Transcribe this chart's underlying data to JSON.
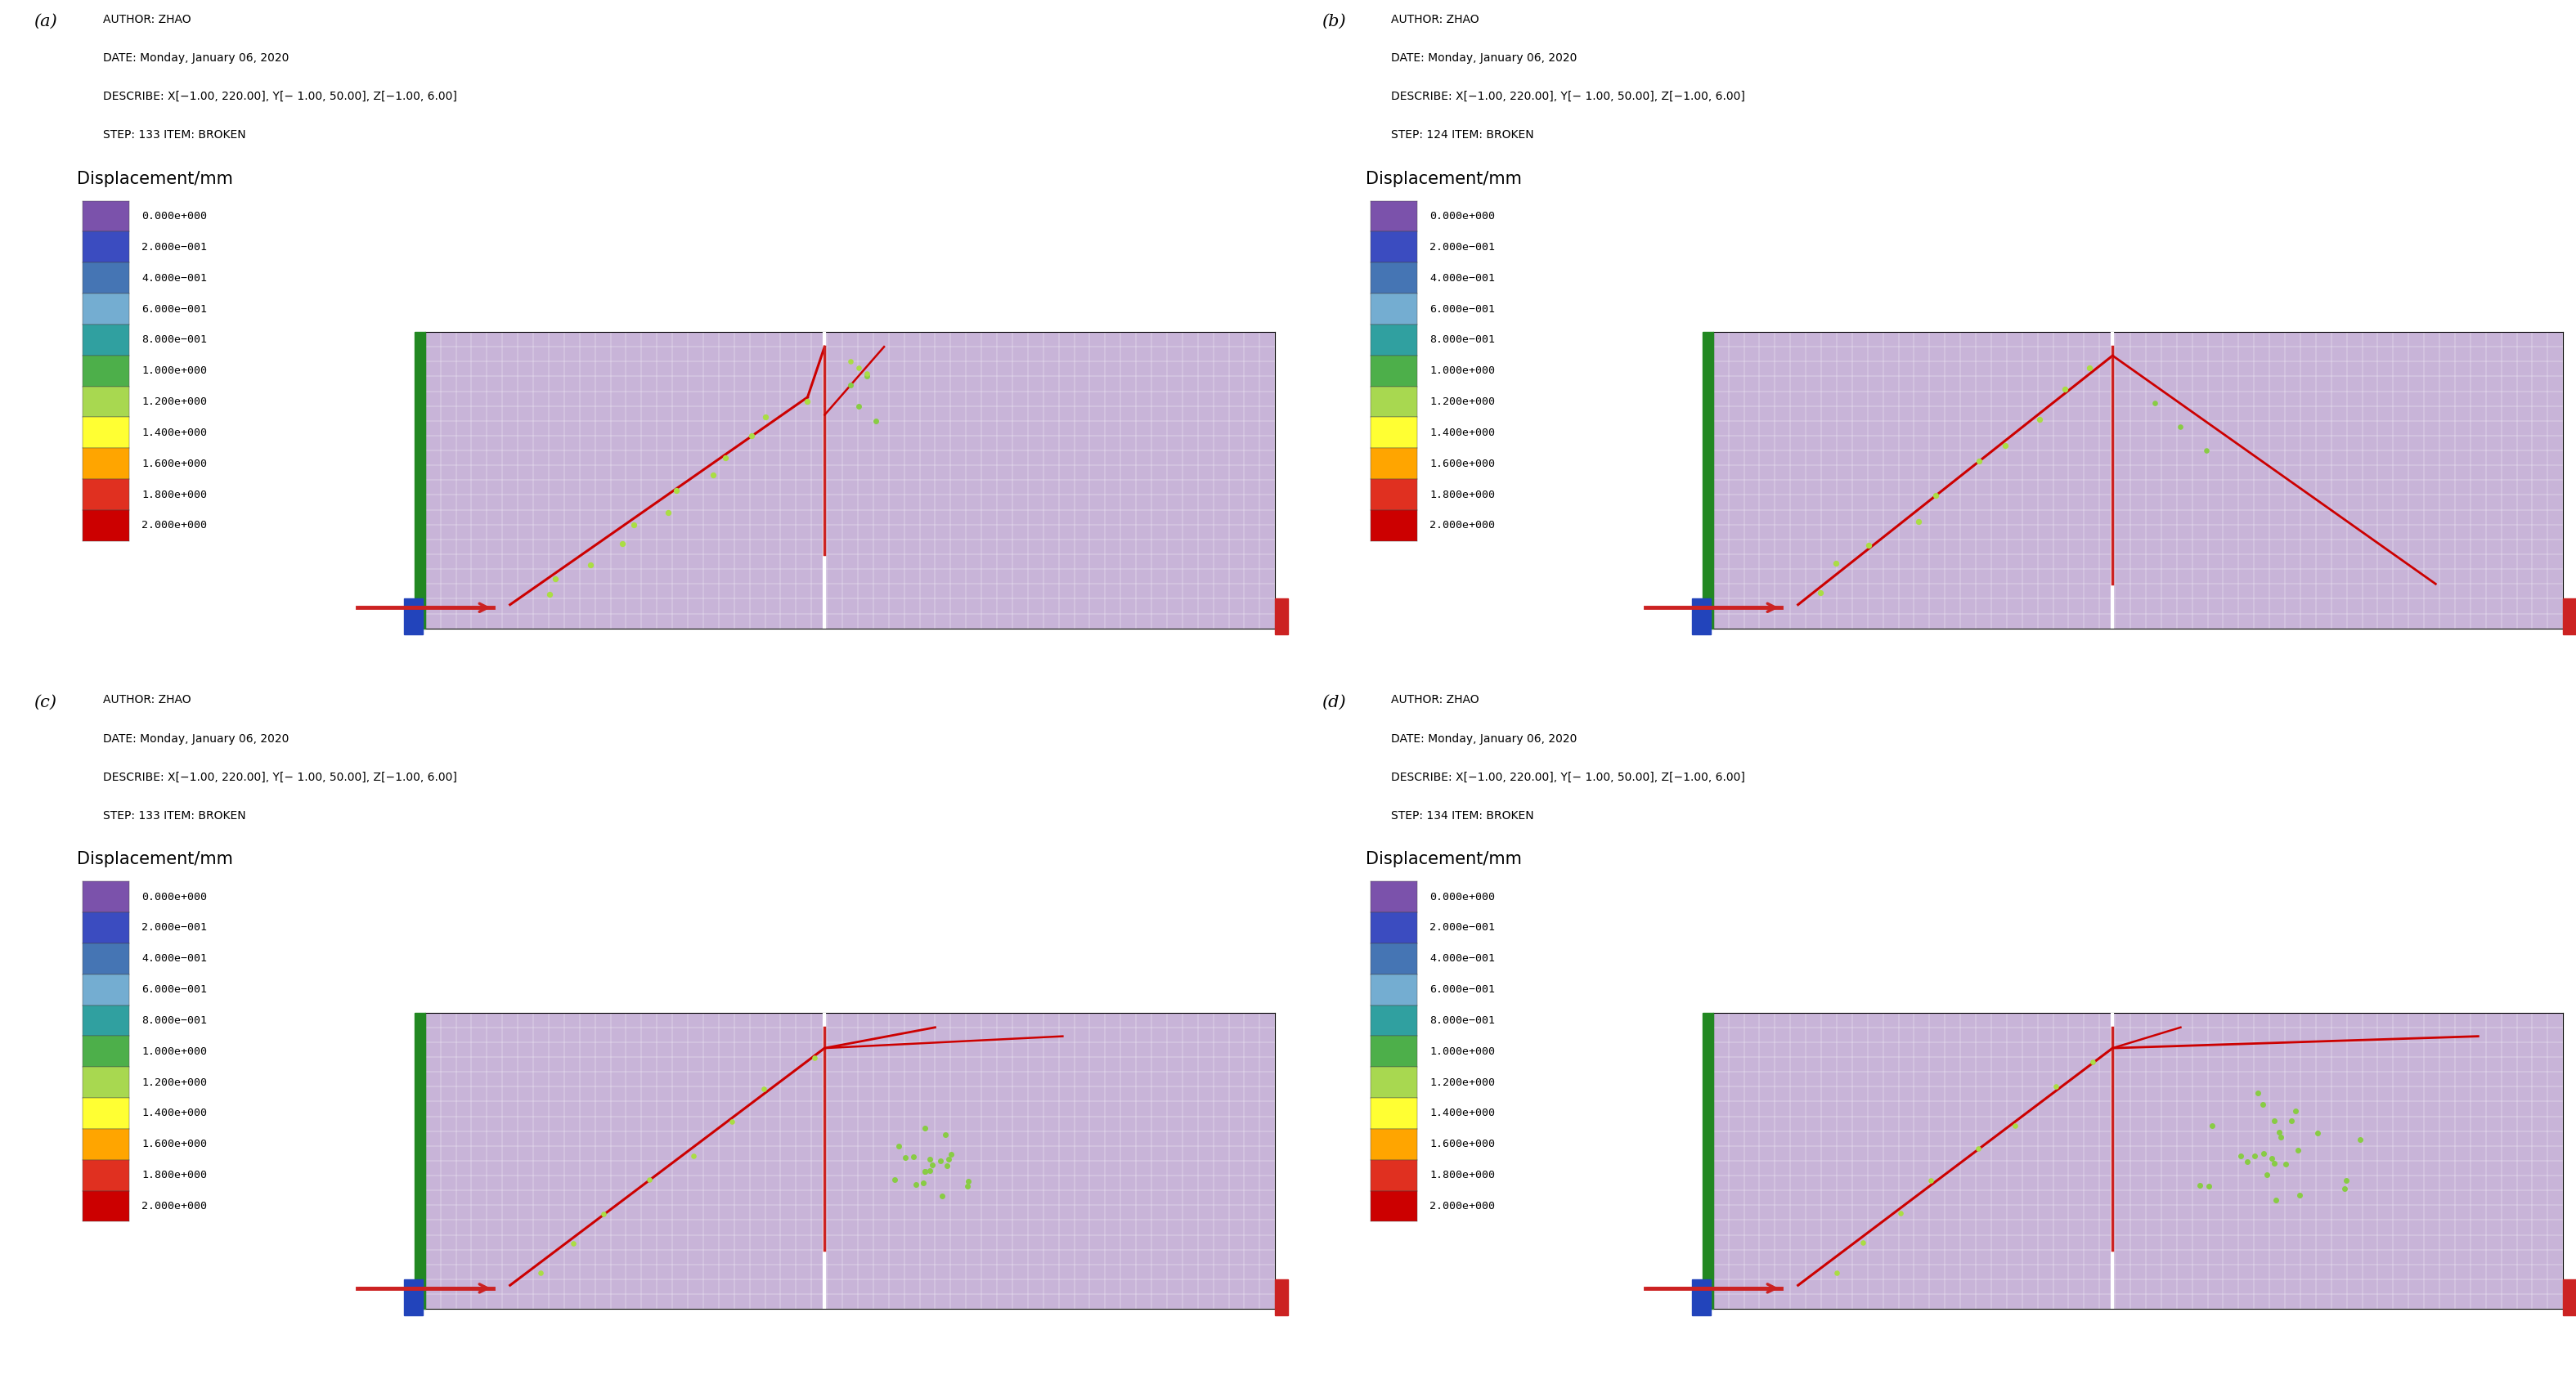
{
  "panels": [
    {
      "label": "(a)",
      "author": "AUTHOR: ZHAO",
      "date": "DATE: Monday, January 06, 2020",
      "describe": "DESCRIBE: X[−1.00, 220.00], Y[− 1.00, 50.00], Z[−1.00, 6.00]",
      "step": "STEP: 133 ITEM: BROKEN"
    },
    {
      "label": "(b)",
      "author": "AUTHOR: ZHAO",
      "date": "DATE: Monday, January 06, 2020",
      "describe": "DESCRIBE: X[−1.00, 220.00], Y[− 1.00, 50.00], Z[−1.00, 6.00]",
      "step": "STEP: 124 ITEM: BROKEN"
    },
    {
      "label": "(c)",
      "author": "AUTHOR: ZHAO",
      "date": "DATE: Monday, January 06, 2020",
      "describe": "DESCRIBE: X[−1.00, 220.00], Y[− 1.00, 50.00], Z[−1.00, 6.00]",
      "step": "STEP: 133 ITEM: BROKEN"
    },
    {
      "label": "(d)",
      "author": "AUTHOR: ZHAO",
      "date": "DATE: Monday, January 06, 2020",
      "describe": "DESCRIBE: X[−1.00, 220.00], Y[− 1.00, 50.00], Z[−1.00, 6.00]",
      "step": "STEP: 134 ITEM: BROKEN"
    }
  ],
  "colorbar_colors": [
    "#7B52AB",
    "#3B4CC0",
    "#4575B4",
    "#74ADD1",
    "#30A0A0",
    "#4DAF4A",
    "#A8D850",
    "#FFFF33",
    "#FFA500",
    "#E03020",
    "#CC0000"
  ],
  "colorbar_labels": [
    "0.000e+000",
    "2.000e−001",
    "4.000e−001",
    "6.000e−001",
    "8.000e−001",
    "1.000e+000",
    "1.200e+000",
    "1.400e+000",
    "1.600e+000",
    "1.800e+000",
    "2.000e+000"
  ],
  "displacement_label": "Displacement/mm",
  "sim_bg_color": "#C8B4D8",
  "grid_color": "#FFFFFF"
}
